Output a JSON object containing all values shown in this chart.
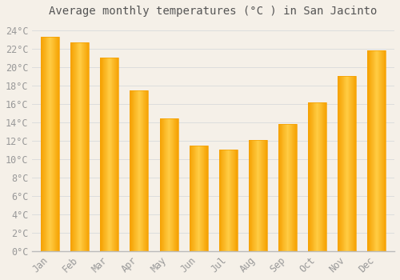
{
  "title": "Average monthly temperatures (°C ) in San Jacinto",
  "months": [
    "Jan",
    "Feb",
    "Mar",
    "Apr",
    "May",
    "Jun",
    "Jul",
    "Aug",
    "Sep",
    "Oct",
    "Nov",
    "Dec"
  ],
  "values": [
    23.3,
    22.7,
    21.0,
    17.5,
    14.4,
    11.5,
    11.0,
    12.1,
    13.8,
    16.2,
    19.0,
    21.8
  ],
  "bar_color_center": "#FFCC44",
  "bar_color_edge": "#F5A000",
  "background_color": "#F5F0E8",
  "grid_color": "#DDDDDD",
  "text_color": "#999999",
  "title_color": "#555555",
  "ylim": [
    0,
    25
  ],
  "ytick_step": 2,
  "title_fontsize": 10,
  "tick_fontsize": 8.5,
  "font_family": "monospace",
  "bar_width": 0.62
}
